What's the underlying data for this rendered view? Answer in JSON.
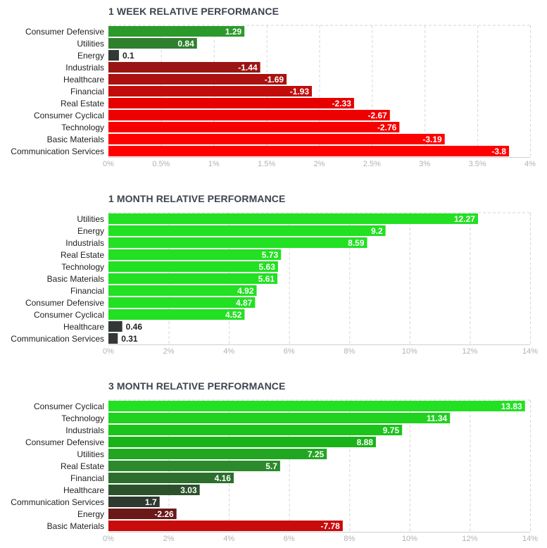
{
  "chart_data": [
    {
      "type": "bar",
      "orientation": "horizontal",
      "title": "1 WEEK RELATIVE PERFORMANCE",
      "categories": [
        "Consumer Defensive",
        "Utilities",
        "Energy",
        "Industrials",
        "Healthcare",
        "Financial",
        "Real Estate",
        "Consumer Cyclical",
        "Technology",
        "Basic Materials",
        "Communication Services"
      ],
      "values": [
        1.29,
        0.84,
        0.1,
        -1.44,
        -1.69,
        -1.93,
        -2.33,
        -2.67,
        -2.76,
        -3.19,
        -3.8
      ],
      "value_labels": [
        "1.29",
        "0.84",
        "0.1",
        "-1.44",
        "-1.69",
        "-1.93",
        "-2.33",
        "-2.67",
        "-2.76",
        "-3.19",
        "-3.8"
      ],
      "bar_colors": [
        "#2b9a2b",
        "#2f7f2f",
        "#333835",
        "#9b1414",
        "#ac1010",
        "#c20c0c",
        "#e60000",
        "#ef0000",
        "#f60000",
        "#ff0000",
        "#ff0000"
      ],
      "xlim": [
        0,
        4
      ],
      "ticks": [
        "0%",
        "0.5%",
        "1%",
        "1.5%",
        "2%",
        "2.5%",
        "3%",
        "3.5%",
        "4%"
      ],
      "tick_values": [
        0,
        0.5,
        1,
        1.5,
        2,
        2.5,
        3,
        3.5,
        4
      ],
      "grid": true
    },
    {
      "type": "bar",
      "orientation": "horizontal",
      "title": "1 MONTH RELATIVE PERFORMANCE",
      "categories": [
        "Utilities",
        "Energy",
        "Industrials",
        "Real Estate",
        "Technology",
        "Basic Materials",
        "Financial",
        "Consumer Defensive",
        "Consumer Cyclical",
        "Healthcare",
        "Communication Services"
      ],
      "values": [
        12.27,
        9.2,
        8.59,
        5.73,
        5.63,
        5.61,
        4.92,
        4.87,
        4.52,
        0.46,
        0.31
      ],
      "value_labels": [
        "12.27",
        "9.2",
        "8.59",
        "5.73",
        "5.63",
        "5.61",
        "4.92",
        "4.87",
        "4.52",
        "0.46",
        "0.31"
      ],
      "bar_colors": [
        "#22e022",
        "#22e022",
        "#22e022",
        "#22e022",
        "#22e022",
        "#22e022",
        "#22e022",
        "#22e022",
        "#22e022",
        "#333835",
        "#333835"
      ],
      "xlim": [
        0,
        14
      ],
      "ticks": [
        "0%",
        "2%",
        "4%",
        "6%",
        "8%",
        "10%",
        "12%",
        "14%"
      ],
      "tick_values": [
        0,
        2,
        4,
        6,
        8,
        10,
        12,
        14
      ],
      "grid": true
    },
    {
      "type": "bar",
      "orientation": "horizontal",
      "title": "3 MONTH RELATIVE PERFORMANCE",
      "categories": [
        "Consumer Cyclical",
        "Technology",
        "Industrials",
        "Consumer Defensive",
        "Utilities",
        "Real Estate",
        "Financial",
        "Healthcare",
        "Communication Services",
        "Energy",
        "Basic Materials"
      ],
      "values": [
        13.83,
        11.34,
        9.75,
        8.88,
        7.25,
        5.7,
        4.16,
        3.03,
        1.7,
        -2.26,
        -7.78
      ],
      "value_labels": [
        "13.83",
        "11.34",
        "9.75",
        "8.88",
        "7.25",
        "5.7",
        "4.16",
        "3.03",
        "1.7",
        "-2.26",
        "-7.78"
      ],
      "bar_colors": [
        "#22e022",
        "#1ed21e",
        "#1bc41b",
        "#19b319",
        "#22a622",
        "#2b8a2b",
        "#2c6e2c",
        "#2c522c",
        "#2e3a30",
        "#6a1818",
        "#c80c0c"
      ],
      "xlim": [
        0,
        14
      ],
      "ticks": [
        "0%",
        "2%",
        "4%",
        "6%",
        "8%",
        "10%",
        "12%",
        "14%"
      ],
      "tick_values": [
        0,
        2,
        4,
        6,
        8,
        10,
        12,
        14
      ],
      "grid": true
    }
  ]
}
